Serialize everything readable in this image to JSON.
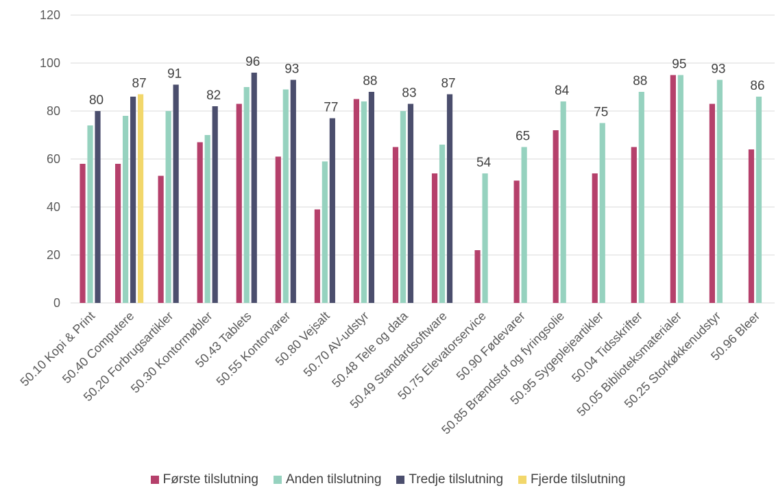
{
  "chart_data": {
    "type": "bar",
    "categories": [
      "50.10 Kopi & Print",
      "50.40 Computere",
      "50.20 Forbrugsartikler",
      "50.30 Kontormøbler",
      "50.43 Tablets",
      "50.55 Kontorvarer",
      "50.80 Vejsalt",
      "50.70 AV-udstyr",
      "50.48 Tele og data",
      "50.49 Standardsoftware",
      "50.75 Elevatorservice",
      "50.90 Fødevarer",
      "50.85 Brændstof og fyringsolie",
      "50.95 Sygeplejeartikler",
      "50.04 Tidsskrifter",
      "50.05 Biblioteksmaterialer",
      "50.25 Storkøkkenudstyr",
      "50.96 Bleer"
    ],
    "series": [
      {
        "name": "Første tilslutning",
        "color": "#B5406B",
        "values": [
          58,
          58,
          53,
          67,
          83,
          61,
          39,
          85,
          65,
          54,
          22,
          51,
          72,
          54,
          65,
          95,
          83,
          64
        ]
      },
      {
        "name": "Anden tilslutning",
        "color": "#96D2BF",
        "values": [
          74,
          78,
          80,
          70,
          90,
          89,
          59,
          84,
          80,
          66,
          54,
          65,
          84,
          75,
          88,
          95,
          93,
          86
        ]
      },
      {
        "name": "Tredje tilslutning",
        "color": "#4B4E6D",
        "values": [
          80,
          86,
          91,
          82,
          96,
          93,
          77,
          88,
          83,
          87,
          null,
          null,
          null,
          null,
          null,
          null,
          null,
          null
        ]
      },
      {
        "name": "Fjerde tilslutning",
        "color": "#F2D76B",
        "values": [
          null,
          87,
          null,
          null,
          null,
          null,
          null,
          null,
          null,
          null,
          null,
          null,
          null,
          null,
          null,
          null,
          null,
          null
        ]
      }
    ],
    "data_labels": [
      "80",
      "87",
      "91",
      "82",
      "96",
      "93",
      "77",
      "88",
      "83",
      "87",
      "54",
      "65",
      "84",
      "75",
      "88",
      "95",
      "93",
      "86"
    ],
    "y_ticks": [
      "0",
      "20",
      "40",
      "60",
      "80",
      "100",
      "120"
    ],
    "ylim": [
      0,
      120
    ],
    "grid": true,
    "legend_position": "bottom",
    "title": "",
    "xlabel": "",
    "ylabel": ""
  }
}
